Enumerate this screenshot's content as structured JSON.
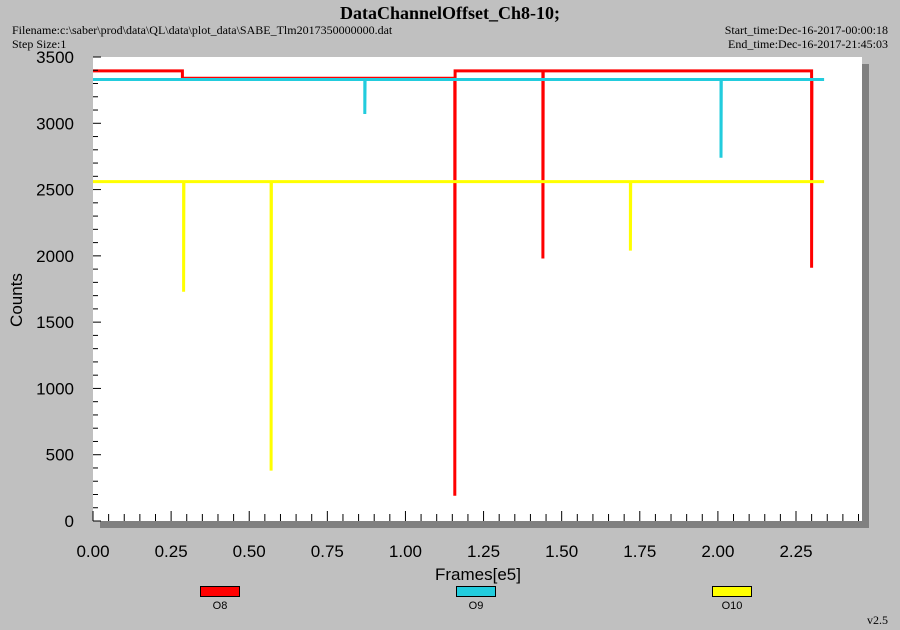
{
  "header": {
    "title": "DataChannelOffset_Ch8-10;",
    "filename": "Filename:c:\\saber\\prod\\data\\QL\\data\\plot_data\\SABE_Tlm2017350000000.dat",
    "step_size": "Step Size:1",
    "start_time": "Start_time:Dec-16-2017-00:00:18",
    "end_time": "End_time:Dec-16-2017-21:45:03"
  },
  "footer": {
    "version": "v2.5"
  },
  "chart_data": {
    "type": "line",
    "title": "DataChannelOffset_Ch8-10;",
    "xlabel": "Frames[e5]",
    "ylabel": "Counts",
    "xlim": [
      0.0,
      2.45
    ],
    "ylim": [
      0,
      3500
    ],
    "x_ticks": [
      "0.00",
      "0.25",
      "0.50",
      "0.75",
      "1.00",
      "1.25",
      "1.50",
      "1.75",
      "2.00",
      "2.25"
    ],
    "x_tick_values": [
      0.0,
      0.25,
      0.5,
      0.75,
      1.0,
      1.25,
      1.5,
      1.75,
      2.0,
      2.25
    ],
    "y_ticks": [
      "0",
      "500",
      "1000",
      "1500",
      "2000",
      "2500",
      "3000",
      "3500"
    ],
    "y_tick_values": [
      0,
      500,
      1000,
      1500,
      2000,
      2500,
      3000,
      3500
    ],
    "legend_position": "bottom",
    "series": [
      {
        "name": "O8",
        "color": "#ff0000",
        "points": [
          [
            0.0,
            3395
          ],
          [
            0.286,
            3395
          ],
          [
            0.286,
            3340
          ],
          [
            0.287,
            3340
          ],
          [
            1.158,
            3340
          ],
          [
            1.158,
            190
          ],
          [
            1.159,
            3395
          ],
          [
            1.44,
            3395
          ],
          [
            1.44,
            1980
          ],
          [
            1.441,
            3395
          ],
          [
            2.3,
            3395
          ],
          [
            2.3,
            1910
          ],
          [
            2.301,
            3320
          ]
        ]
      },
      {
        "name": "O9",
        "color": "#22ccdd",
        "points": [
          [
            0.0,
            3330
          ],
          [
            0.87,
            3330
          ],
          [
            0.87,
            3070
          ],
          [
            0.871,
            3330
          ],
          [
            2.01,
            3330
          ],
          [
            2.01,
            2740
          ],
          [
            2.011,
            3330
          ],
          [
            2.34,
            3330
          ]
        ]
      },
      {
        "name": "O10",
        "color": "#ffff00",
        "points": [
          [
            0.0,
            2560
          ],
          [
            0.29,
            2560
          ],
          [
            0.29,
            1730
          ],
          [
            0.291,
            2560
          ],
          [
            0.57,
            2560
          ],
          [
            0.57,
            380
          ],
          [
            0.571,
            2560
          ],
          [
            1.72,
            2560
          ],
          [
            1.72,
            2040
          ],
          [
            1.721,
            2560
          ],
          [
            2.34,
            2560
          ]
        ]
      }
    ]
  }
}
